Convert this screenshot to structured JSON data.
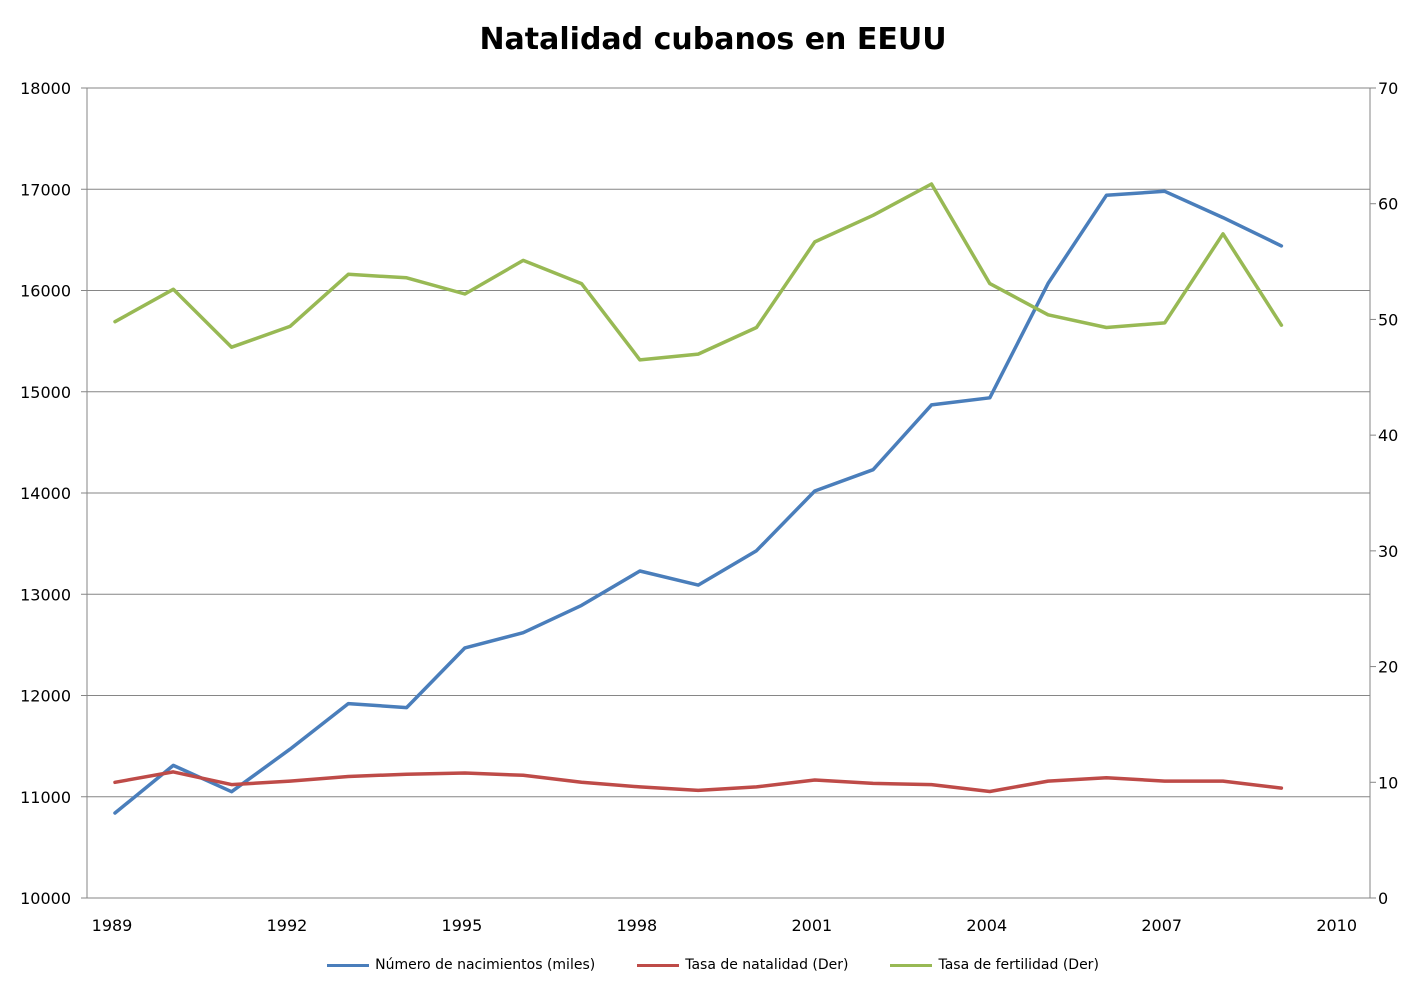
{
  "chart_data": {
    "type": "line",
    "title": "Natalidad cubanos en EEUU",
    "x": [
      1989,
      1990,
      1991,
      1992,
      1993,
      1994,
      1995,
      1996,
      1997,
      1998,
      1999,
      2000,
      2001,
      2002,
      2003,
      2004,
      2005,
      2006,
      2007,
      2008,
      2009
    ],
    "xlim": [
      1989,
      2011
    ],
    "x_ticks": [
      "1989",
      "1992",
      "1995",
      "1998",
      "2001",
      "2004",
      "2007",
      "2010"
    ],
    "ylim_left": [
      10000,
      18000
    ],
    "y_ticks_left": [
      "10000",
      "11000",
      "12000",
      "13000",
      "14000",
      "15000",
      "16000",
      "17000",
      "18000"
    ],
    "ylim_right": [
      0,
      70
    ],
    "y_ticks_right": [
      "0",
      "10",
      "20",
      "30",
      "40",
      "50",
      "60",
      "70"
    ],
    "grid": true,
    "legend_position": "bottom",
    "series": [
      {
        "name": "Número de nacimientos (miles)",
        "axis": "left",
        "color": "#4a7ebb",
        "values": [
          10840,
          11310,
          11050,
          11470,
          11920,
          11880,
          12470,
          12620,
          12890,
          13230,
          13090,
          13430,
          14020,
          14230,
          14870,
          14940,
          16070,
          16940,
          16980,
          16720,
          16440
        ]
      },
      {
        "name": "Tasa de natalidad (Der)",
        "axis": "right",
        "color": "#be4b48",
        "values": [
          10.0,
          10.9,
          9.8,
          10.1,
          10.5,
          10.7,
          10.8,
          10.6,
          10.0,
          9.6,
          9.3,
          9.6,
          10.2,
          9.9,
          9.8,
          9.2,
          10.1,
          10.4,
          10.1,
          10.1,
          9.5
        ]
      },
      {
        "name": "Tasa de fertilidad (Der)",
        "axis": "right",
        "color": "#98b954",
        "values": [
          49.8,
          52.6,
          47.6,
          49.4,
          53.9,
          53.6,
          52.2,
          55.1,
          53.1,
          46.5,
          47.0,
          49.3,
          56.7,
          59.0,
          61.7,
          53.1,
          50.4,
          49.3,
          49.7,
          57.4,
          49.5
        ]
      }
    ]
  }
}
